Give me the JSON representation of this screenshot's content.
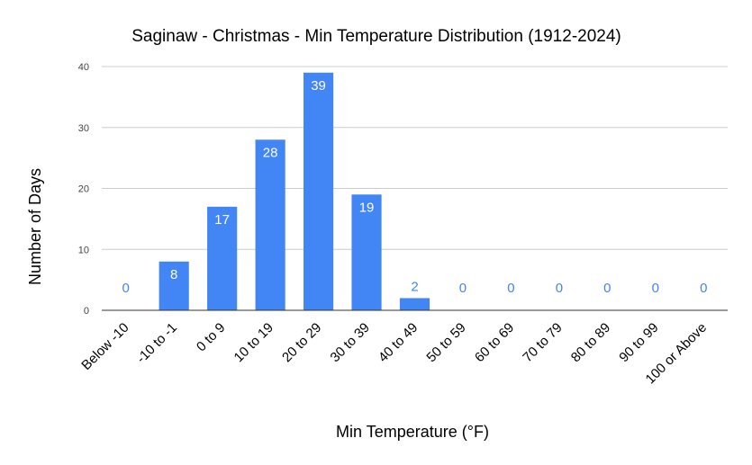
{
  "chart_data": {
    "type": "bar",
    "title": "Saginaw - Christmas - Min Temperature Distribution (1912-2024)",
    "xlabel": "Min Temperature (°F)",
    "ylabel": "Number of Days",
    "categories": [
      "Below -10",
      "-10 to -1",
      "0 to 9",
      "10 to 19",
      "20 to 29",
      "30 to 39",
      "40 to 49",
      "50 to 59",
      "60 to 69",
      "70 to 79",
      "80 to 89",
      "90 to 99",
      "100 or Above"
    ],
    "values": [
      0,
      8,
      17,
      28,
      39,
      19,
      2,
      0,
      0,
      0,
      0,
      0,
      0
    ],
    "ylim": [
      0,
      40
    ],
    "yticks": [
      0,
      10,
      20,
      30,
      40
    ],
    "grid": true,
    "legend": "none",
    "colors": {
      "bar": "#4285f4",
      "label_inside": "#ffffff",
      "label_outside": "#4285f4"
    }
  }
}
